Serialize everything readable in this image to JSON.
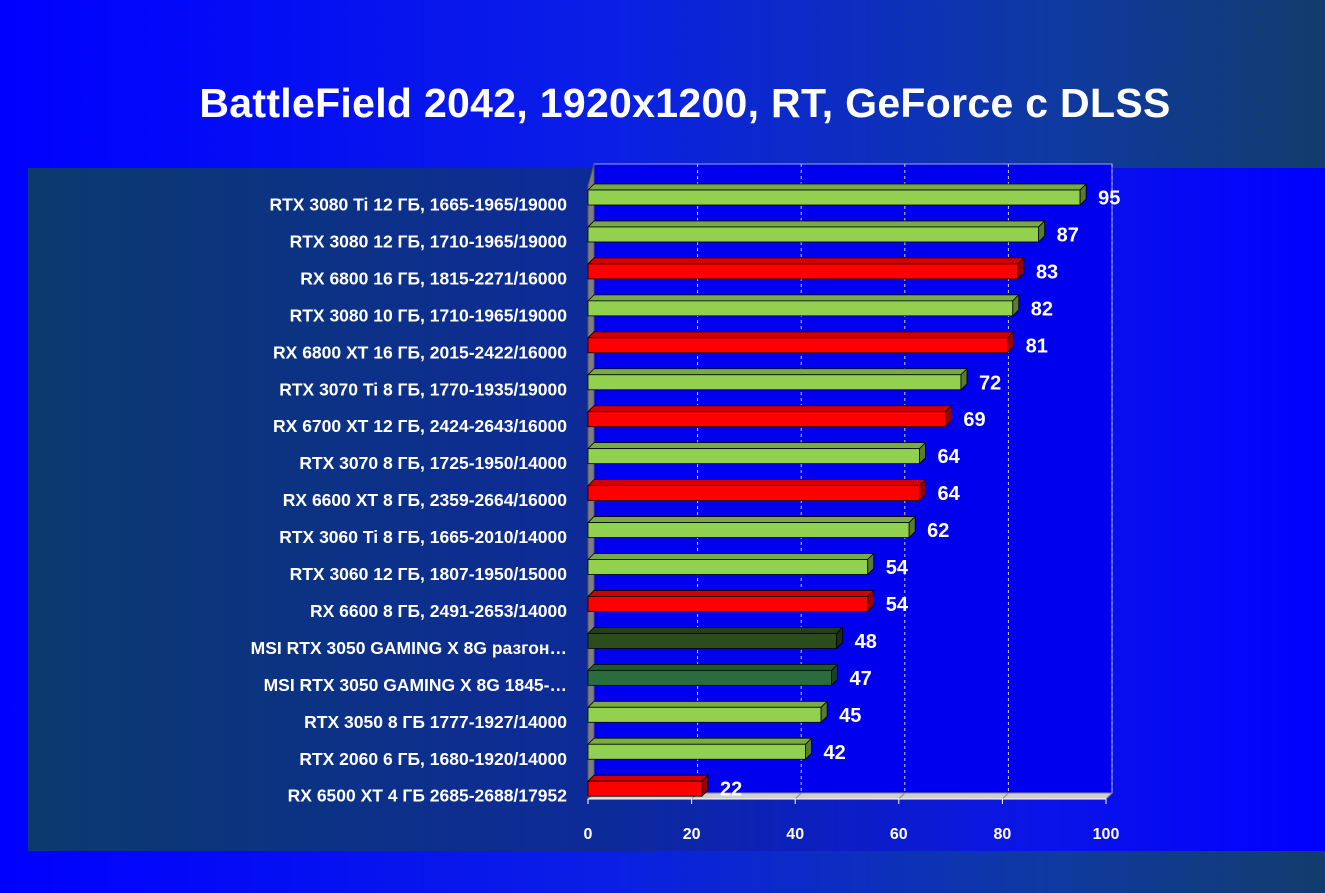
{
  "chart_data": {
    "type": "bar",
    "orientation": "horizontal",
    "title": "BattleField 2042, 1920x1200, RT, GeForce с DLSS",
    "xlabel": "",
    "ylabel": "",
    "xlim": [
      0,
      100
    ],
    "ticks": [
      "0",
      "20",
      "40",
      "60",
      "80",
      "100"
    ],
    "grid": true,
    "categories": [
      "RTX 3080 Ti 12 ГБ, 1665-1965/19000",
      "RTX 3080 12 ГБ, 1710-1965/19000",
      "RX 6800 16 ГБ, 1815-2271/16000",
      "RTX 3080 10 ГБ, 1710-1965/19000",
      "RX 6800 XT 16 ГБ, 2015-2422/16000",
      "RTX 3070 Ti 8 ГБ, 1770-1935/19000",
      "RX 6700 XT 12 ГБ, 2424-2643/16000",
      "RTX 3070 8 ГБ, 1725-1950/14000",
      "RX 6600 XT 8 ГБ, 2359-2664/16000",
      "RTX 3060 Ti 8 ГБ, 1665-2010/14000",
      "RTX 3060 12 ГБ, 1807-1950/15000",
      "RX 6600 8 ГБ, 2491-2653/14000",
      "MSI  RTX 3050 GAMING X 8G разгон…",
      "MSI  RTX 3050 GAMING X 8G 1845-…",
      "RTX 3050 8 ГБ 1777-1927/14000",
      "RTX 2060 6 ГБ, 1680-1920/14000",
      "RX 6500 XT 4 ГБ 2685-2688/17952"
    ],
    "values": [
      95,
      87,
      83,
      82,
      81,
      72,
      69,
      64,
      64,
      62,
      54,
      54,
      48,
      47,
      45,
      42,
      22
    ],
    "value_labels": [
      "95",
      "87",
      "83",
      "82",
      "81",
      "72",
      "69",
      "64",
      "64",
      "62",
      "54",
      "54",
      "48",
      "47",
      "45",
      "42",
      "22"
    ],
    "bar_colors": [
      "#92d050",
      "#92d050",
      "#ff0000",
      "#92d050",
      "#ff0000",
      "#92d050",
      "#ff0000",
      "#92d050",
      "#ff0000",
      "#92d050",
      "#92d050",
      "#ff0000",
      "#2b4d1c",
      "#2b6b40",
      "#92d050",
      "#92d050",
      "#ff0000"
    ]
  }
}
